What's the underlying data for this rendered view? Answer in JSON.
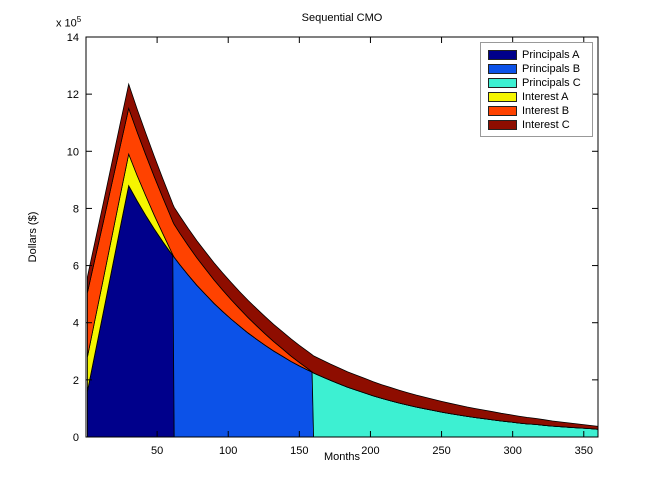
{
  "figure": {
    "title": "Sequential CMO",
    "xlabel": "Months",
    "ylabel": "Dollars ($)",
    "y_exponent": {
      "base": "x 10",
      "sup": "5"
    }
  },
  "chart_data": {
    "type": "area",
    "stacked": true,
    "title": "Sequential CMO",
    "xlabel": "Months",
    "ylabel": "Dollars ($)",
    "y_unit_multiplier": 100000,
    "xlim": [
      0,
      360
    ],
    "ylim": [
      0,
      14
    ],
    "x_ticks": [
      50,
      100,
      150,
      200,
      250,
      300,
      350
    ],
    "y_ticks": [
      0,
      2,
      4,
      6,
      8,
      10,
      12,
      14
    ],
    "grid": false,
    "legend_position": "top-right",
    "months": [
      1,
      6,
      12,
      18,
      24,
      30,
      36,
      42,
      48,
      54,
      60,
      61,
      62,
      66,
      72,
      78,
      84,
      90,
      96,
      102,
      108,
      114,
      120,
      126,
      132,
      138,
      144,
      150,
      156,
      159,
      160,
      166,
      172,
      178,
      184,
      190,
      196,
      202,
      208,
      214,
      220,
      226,
      232,
      238,
      244,
      250,
      256,
      262,
      268,
      274,
      280,
      286,
      292,
      298,
      304,
      310,
      316,
      322,
      328,
      334,
      340,
      346,
      352,
      358,
      360
    ],
    "series": [
      {
        "name": "Principals A",
        "color": "#00008B",
        "values": [
          1.6,
          2.84,
          4.33,
          5.82,
          7.31,
          8.8,
          8.26,
          7.76,
          7.28,
          6.84,
          6.42,
          6.35,
          0,
          0,
          0,
          0,
          0,
          0,
          0,
          0,
          0,
          0,
          0,
          0,
          0,
          0,
          0,
          0,
          0,
          0,
          0,
          0,
          0,
          0,
          0,
          0,
          0,
          0,
          0,
          0,
          0,
          0,
          0,
          0,
          0,
          0,
          0,
          0,
          0,
          0,
          0,
          0,
          0,
          0,
          0,
          0,
          0,
          0,
          0,
          0,
          0,
          0,
          0,
          0,
          0
        ]
      },
      {
        "name": "Principals B",
        "color": "#0C52E8",
        "values": [
          0,
          0,
          0,
          0,
          0,
          0,
          0,
          0,
          0,
          0,
          0,
          0,
          6.29,
          6.03,
          5.66,
          5.31,
          4.99,
          4.68,
          4.4,
          4.13,
          3.88,
          3.64,
          3.42,
          3.21,
          3.01,
          2.83,
          2.65,
          2.49,
          2.34,
          2.27,
          0,
          0,
          0,
          0,
          0,
          0,
          0,
          0,
          0,
          0,
          0,
          0,
          0,
          0,
          0,
          0,
          0,
          0,
          0,
          0,
          0,
          0,
          0,
          0,
          0,
          0,
          0,
          0,
          0,
          0,
          0,
          0,
          0,
          0,
          0
        ]
      },
      {
        "name": "Principals C",
        "color": "#3DF0D2",
        "values": [
          0,
          0,
          0,
          0,
          0,
          0,
          0,
          0,
          0,
          0,
          0,
          0,
          0,
          0,
          0,
          0,
          0,
          0,
          0,
          0,
          0,
          0,
          0,
          0,
          0,
          0,
          0,
          0,
          0,
          0,
          2.24,
          2.11,
          1.98,
          1.86,
          1.74,
          1.64,
          1.54,
          1.44,
          1.35,
          1.27,
          1.19,
          1.12,
          1.05,
          0.99,
          0.93,
          0.87,
          0.82,
          0.77,
          0.72,
          0.68,
          0.64,
          0.6,
          0.56,
          0.53,
          0.49,
          0.46,
          0.44,
          0.41,
          0.38,
          0.36,
          0.34,
          0.32,
          0.3,
          0.28,
          0.27
        ]
      },
      {
        "name": "Interest A",
        "color": "#F5F500",
        "values": [
          1.2,
          1.18,
          1.16,
          1.14,
          1.12,
          1.1,
          0.89,
          0.69,
          0.48,
          0.28,
          0.07,
          0.03,
          0,
          0,
          0,
          0,
          0,
          0,
          0,
          0,
          0,
          0,
          0,
          0,
          0,
          0,
          0,
          0,
          0,
          0,
          0,
          0,
          0,
          0,
          0,
          0,
          0,
          0,
          0,
          0,
          0,
          0,
          0,
          0,
          0,
          0,
          0,
          0,
          0,
          0,
          0,
          0,
          0,
          0,
          0,
          0,
          0,
          0,
          0,
          0,
          0,
          0,
          0,
          0,
          0
        ]
      },
      {
        "name": "Interest B",
        "color": "#FF4200",
        "values": [
          2.25,
          2.14,
          2.0,
          1.87,
          1.73,
          1.6,
          1.52,
          1.43,
          1.35,
          1.26,
          1.18,
          1.16,
          1.15,
          1.1,
          1.03,
          0.96,
          0.89,
          0.82,
          0.75,
          0.68,
          0.61,
          0.54,
          0.47,
          0.4,
          0.33,
          0.26,
          0.19,
          0.12,
          0.05,
          0.01,
          0,
          0,
          0,
          0,
          0,
          0,
          0,
          0,
          0,
          0,
          0,
          0,
          0,
          0,
          0,
          0,
          0,
          0,
          0,
          0,
          0,
          0,
          0,
          0,
          0,
          0,
          0,
          0,
          0,
          0,
          0,
          0,
          0,
          0,
          0
        ]
      },
      {
        "name": "Interest C",
        "color": "#8E0D00",
        "values": [
          0.55,
          0.6,
          0.66,
          0.72,
          0.79,
          0.85,
          0.8,
          0.76,
          0.71,
          0.66,
          0.62,
          0.61,
          0.6,
          0.6,
          0.6,
          0.6,
          0.6,
          0.6,
          0.6,
          0.6,
          0.6,
          0.6,
          0.6,
          0.6,
          0.6,
          0.6,
          0.6,
          0.6,
          0.6,
          0.6,
          0.6,
          0.585,
          0.57,
          0.555,
          0.54,
          0.525,
          0.51,
          0.495,
          0.48,
          0.465,
          0.45,
          0.435,
          0.42,
          0.405,
          0.39,
          0.375,
          0.36,
          0.345,
          0.33,
          0.315,
          0.3,
          0.285,
          0.27,
          0.255,
          0.24,
          0.225,
          0.21,
          0.195,
          0.18,
          0.165,
          0.15,
          0.135,
          0.12,
          0.105,
          0.1
        ]
      }
    ]
  }
}
